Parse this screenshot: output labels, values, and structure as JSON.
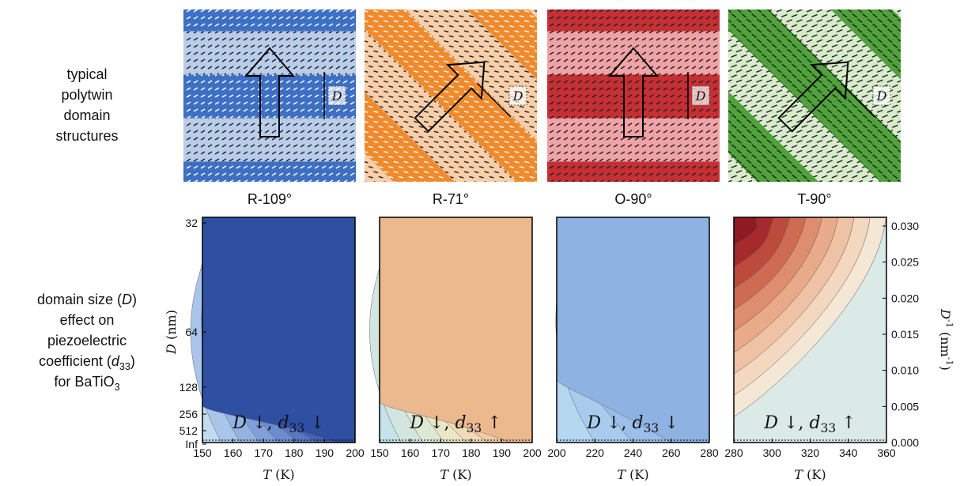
{
  "left_labels": {
    "top": [
      [
        {
          "text": "typical"
        }
      ],
      [
        {
          "text": "polytwin"
        }
      ],
      [
        {
          "text": "domain"
        }
      ],
      [
        {
          "text": "structures"
        }
      ]
    ],
    "bottom": [
      [
        {
          "text": "domain size ("
        },
        {
          "text": "D",
          "style": "italic"
        },
        {
          "text": ")"
        }
      ],
      [
        {
          "text": "effect on"
        }
      ],
      [
        {
          "text": "piezoelectric"
        }
      ],
      [
        {
          "text": "coefficient ("
        },
        {
          "text": "d",
          "style": "italic"
        },
        {
          "text": "33",
          "style": "sub"
        },
        {
          "text": ")"
        }
      ],
      [
        {
          "text": "for BaTiO"
        },
        {
          "text": "3",
          "style": "sub"
        }
      ]
    ]
  },
  "domain_size_symbol": "D",
  "panels": [
    {
      "title": "R-109°",
      "annotation": [
        {
          "text": "D",
          "style": "italic"
        },
        {
          "text": " ↓, "
        },
        {
          "text": "d",
          "style": "italic"
        },
        {
          "text": "33",
          "style": "sub"
        },
        {
          "text": " ↓"
        }
      ],
      "xticks": [
        "150",
        "160",
        "170",
        "180",
        "190",
        "200"
      ]
    },
    {
      "title": "R-71°",
      "annotation": [
        {
          "text": "D",
          "style": "italic"
        },
        {
          "text": " ↓, "
        },
        {
          "text": "d",
          "style": "italic"
        },
        {
          "text": "33",
          "style": "sub"
        },
        {
          "text": " ↑"
        }
      ],
      "xticks": [
        "150",
        "160",
        "170",
        "180",
        "190",
        "200"
      ]
    },
    {
      "title": "O-90°",
      "annotation": [
        {
          "text": "D",
          "style": "italic"
        },
        {
          "text": " ↓, "
        },
        {
          "text": "d",
          "style": "italic"
        },
        {
          "text": "33",
          "style": "sub"
        },
        {
          "text": " ↓"
        }
      ],
      "xticks": [
        "200",
        "220",
        "240",
        "260",
        "280"
      ]
    },
    {
      "title": "T-90°",
      "annotation": [
        {
          "text": "D",
          "style": "italic"
        },
        {
          "text": " ↓, "
        },
        {
          "text": "d",
          "style": "italic"
        },
        {
          "text": "33",
          "style": "sub"
        },
        {
          "text": " ↑"
        }
      ],
      "xticks": [
        "280",
        "300",
        "320",
        "340",
        "360"
      ]
    }
  ],
  "x_label": [
    {
      "text": "T",
      "style": "italic"
    },
    {
      "text": " (K)"
    }
  ],
  "y_axis": {
    "label": [
      {
        "text": "D",
        "style": "italic"
      },
      {
        "text": " (nm)"
      }
    ],
    "ticks": [
      "32",
      "64",
      "128",
      "256",
      "512",
      "Inf"
    ]
  },
  "y2_axis": {
    "label": [
      {
        "text": "D",
        "style": "italic"
      },
      {
        "text": "-1",
        "style": "sup"
      },
      {
        "text": " (nm"
      },
      {
        "text": "-1",
        "style": "sup"
      },
      {
        "text": ")"
      }
    ],
    "ticks": [
      "0.030",
      "0.025",
      "0.020",
      "0.015",
      "0.010",
      "0.005",
      "0.000"
    ]
  }
}
